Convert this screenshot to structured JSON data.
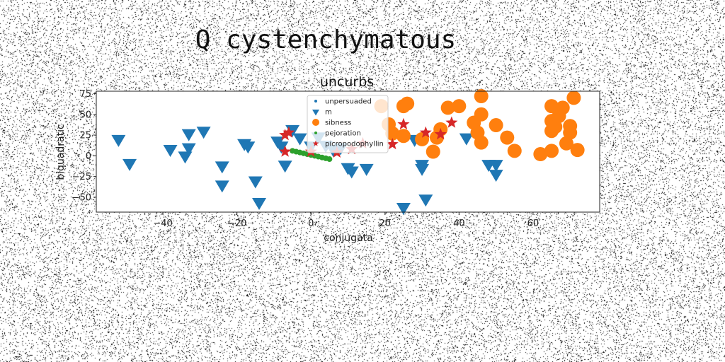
{
  "figure": {
    "suptitle": "Q cystenchymatous"
  },
  "chart_data": {
    "type": "scatter",
    "title": "uncurbs",
    "xlabel": "conjugata",
    "ylabel": "biquadratic",
    "xlim": [
      -58,
      78
    ],
    "ylim": [
      -68,
      78
    ],
    "xticks": [
      -40,
      -20,
      0,
      20,
      40,
      60
    ],
    "yticks": [
      -50,
      -25,
      0,
      25,
      50,
      75
    ],
    "grid": false,
    "legend_position": "top-center",
    "series": [
      {
        "name": "unpersuaded",
        "marker": "point",
        "color": "#1f77b4",
        "points": []
      },
      {
        "name": "m",
        "marker": "triangle-down",
        "color": "#1f77b4",
        "points": [
          [
            -52,
            20
          ],
          [
            -49,
            -9
          ],
          [
            -38,
            8
          ],
          [
            -34,
            0
          ],
          [
            -33,
            27
          ],
          [
            -33,
            10
          ],
          [
            -29,
            30
          ],
          [
            -24,
            -12
          ],
          [
            -24,
            -35
          ],
          [
            -18,
            15
          ],
          [
            -17,
            12
          ],
          [
            -15,
            -30
          ],
          [
            -14,
            -56
          ],
          [
            -9,
            18
          ],
          [
            -8,
            12
          ],
          [
            -7,
            -11
          ],
          [
            -5,
            32
          ],
          [
            -3,
            22
          ],
          [
            0,
            12
          ],
          [
            2,
            23
          ],
          [
            4,
            13
          ],
          [
            6,
            8
          ],
          [
            8,
            10
          ],
          [
            10,
            -14
          ],
          [
            11,
            -18
          ],
          [
            15,
            -15
          ],
          [
            25,
            -62
          ],
          [
            28,
            20
          ],
          [
            30,
            -10
          ],
          [
            30,
            -15
          ],
          [
            31,
            -52
          ],
          [
            42,
            22
          ],
          [
            48,
            -10
          ],
          [
            50,
            -10
          ],
          [
            50,
            -22
          ]
        ]
      },
      {
        "name": "sibness",
        "marker": "circle",
        "color": "#ff7f0e",
        "points": [
          [
            19,
            60
          ],
          [
            21,
            38
          ],
          [
            22,
            27
          ],
          [
            25,
            60
          ],
          [
            25,
            24
          ],
          [
            26,
            63
          ],
          [
            30,
            20
          ],
          [
            33,
            5
          ],
          [
            34,
            22
          ],
          [
            35,
            32
          ],
          [
            37,
            58
          ],
          [
            40,
            60
          ],
          [
            44,
            40
          ],
          [
            45,
            28
          ],
          [
            46,
            72
          ],
          [
            46,
            50
          ],
          [
            46,
            16
          ],
          [
            50,
            37
          ],
          [
            53,
            22
          ],
          [
            55,
            6
          ],
          [
            62,
            2
          ],
          [
            65,
            6
          ],
          [
            65,
            60
          ],
          [
            65,
            42
          ],
          [
            65,
            30
          ],
          [
            66,
            35
          ],
          [
            67,
            48
          ],
          [
            68,
            58
          ],
          [
            69,
            15
          ],
          [
            70,
            36
          ],
          [
            70,
            28
          ],
          [
            71,
            70
          ],
          [
            72,
            7
          ]
        ]
      },
      {
        "name": "pejoration",
        "marker": "point",
        "color": "#2ca02c",
        "points": [
          [
            -5,
            6
          ],
          [
            -4,
            5
          ],
          [
            -3,
            4
          ],
          [
            -2,
            3
          ],
          [
            -1,
            2
          ],
          [
            0,
            1
          ],
          [
            1,
            0
          ],
          [
            2,
            -1
          ],
          [
            3,
            -2
          ],
          [
            4,
            -3
          ],
          [
            5,
            -4
          ]
        ]
      },
      {
        "name": "picropodophyllin",
        "marker": "star",
        "color": "#d62728",
        "points": [
          [
            -7,
            25
          ],
          [
            -7,
            5
          ],
          [
            -6,
            28
          ],
          [
            0,
            5
          ],
          [
            7,
            4
          ],
          [
            11,
            8
          ],
          [
            14,
            15
          ],
          [
            22,
            14
          ],
          [
            25,
            38
          ],
          [
            31,
            28
          ],
          [
            35,
            26
          ],
          [
            38,
            40
          ]
        ]
      }
    ]
  }
}
